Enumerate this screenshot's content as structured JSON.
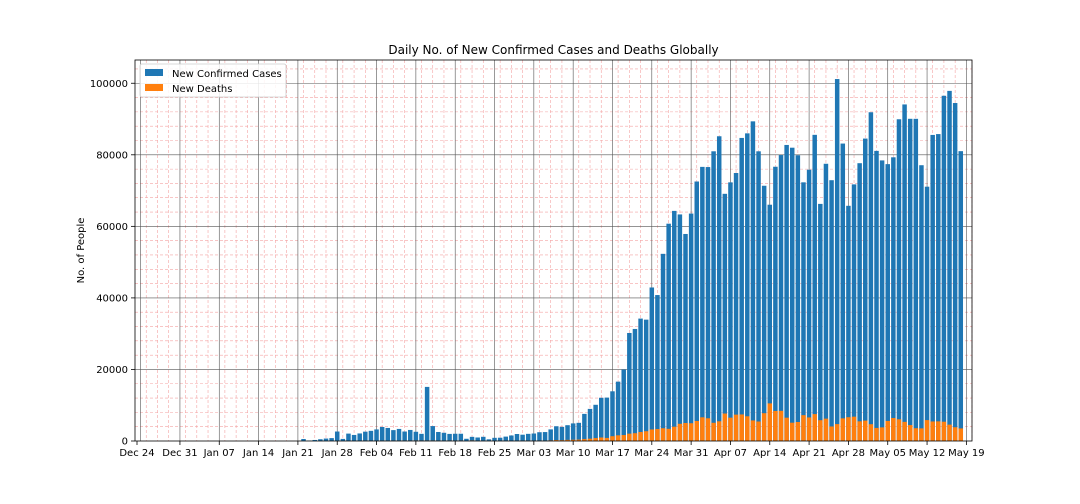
{
  "chart_data": {
    "type": "bar",
    "title": "Daily No. of New Confirmed Cases and Deaths Globally",
    "xlabel": "",
    "ylabel": "No. of People",
    "x_start": "2019-12-24",
    "x_ticks": [
      "Dec 24",
      "Dec 31",
      "Jan 07",
      "Jan 14",
      "Jan 21",
      "Jan 28",
      "Feb 04",
      "Feb 11",
      "Feb 18",
      "Feb 25",
      "Mar 03",
      "Mar 10",
      "Mar 17",
      "Mar 24",
      "Mar 31",
      "Apr 07",
      "Apr 14",
      "Apr 21",
      "Apr 28",
      "May 05",
      "May 12",
      "May 19"
    ],
    "y_ticks": [
      "0",
      "20000",
      "40000",
      "60000",
      "80000",
      "100000"
    ],
    "ylim": [
      0,
      106500
    ],
    "grid": true,
    "legend_position": "top-left",
    "data_start": "2020-01-22",
    "series": [
      {
        "name": "New Confirmed Cases",
        "color": "#1f77b4",
        "values": [
          555,
          98,
          288,
          493,
          683,
          809,
          2651,
          588,
          2068,
          1693,
          2111,
          2611,
          2843,
          3239,
          3924,
          3645,
          3042,
          3372,
          2651,
          3090,
          2578,
          2004,
          15123,
          4174,
          2522,
          2298,
          1983,
          2023,
          2030,
          620,
          1157,
          982,
          1174,
          469,
          888,
          914,
          1227,
          1549,
          1954,
          1762,
          1999,
          2092,
          2455,
          2501,
          3244,
          4122,
          3952,
          4418,
          4917,
          5079,
          7580,
          8976,
          10123,
          12082,
          12132,
          13893,
          16593,
          19981,
          30195,
          31319,
          34218,
          33921,
          42912,
          40797,
          52315,
          60743,
          64323,
          63329,
          57870,
          63573,
          72537,
          76624,
          76576,
          80981,
          85184,
          69095,
          72297,
          74913,
          84715,
          85996,
          89350,
          80979,
          71347,
          66047,
          76663,
          79932,
          82751,
          81985,
          79871,
          72305,
          75828,
          85580,
          66276,
          77497,
          72902,
          101179,
          83144,
          65746,
          71733,
          77653,
          84538,
          91894,
          81093,
          78432,
          77393,
          79303,
          89934,
          94077,
          90063,
          90057,
          77088,
          71088,
          85555,
          85793,
          96502,
          97869,
          94474,
          81018
        ],
        "values_note": ""
      },
      {
        "name": "New Deaths",
        "color": "#ff7f0e",
        "values": [
          17,
          1,
          8,
          16,
          14,
          26,
          49,
          2,
          38,
          42,
          46,
          103,
          64,
          66,
          73,
          86,
          89,
          97,
          108,
          97,
          146,
          121,
          143,
          142,
          106,
          98,
          139,
          115,
          125,
          5,
          159,
          61,
          58,
          71,
          58,
          75,
          73,
          37,
          68,
          66,
          107,
          105,
          111,
          112,
          176,
          263,
          228,
          320,
          354,
          396,
          532,
          646,
          828,
          977,
          857,
          1341,
          1589,
          1670,
          2052,
          2180,
          2513,
          2735,
          3222,
          3343,
          3563,
          3408,
          3999,
          4811,
          5031,
          4969,
          5600,
          6622,
          6357,
          5092,
          5516,
          7679,
          6524,
          7370,
          7426,
          6906,
          5747,
          5446,
          7770,
          10516,
          8394,
          8430,
          6515,
          5121,
          5312,
          7225,
          6589,
          7520,
          5813,
          6252,
          4062,
          4728,
          6329,
          6651,
          6801,
          5501,
          5698,
          4693,
          3651,
          3809,
          5612,
          6423,
          6068,
          5346,
          4451,
          3576,
          3533,
          5846,
          5460,
          5493,
          5389,
          4579,
          3846,
          3517
        ],
        "values_note": ""
      }
    ]
  }
}
